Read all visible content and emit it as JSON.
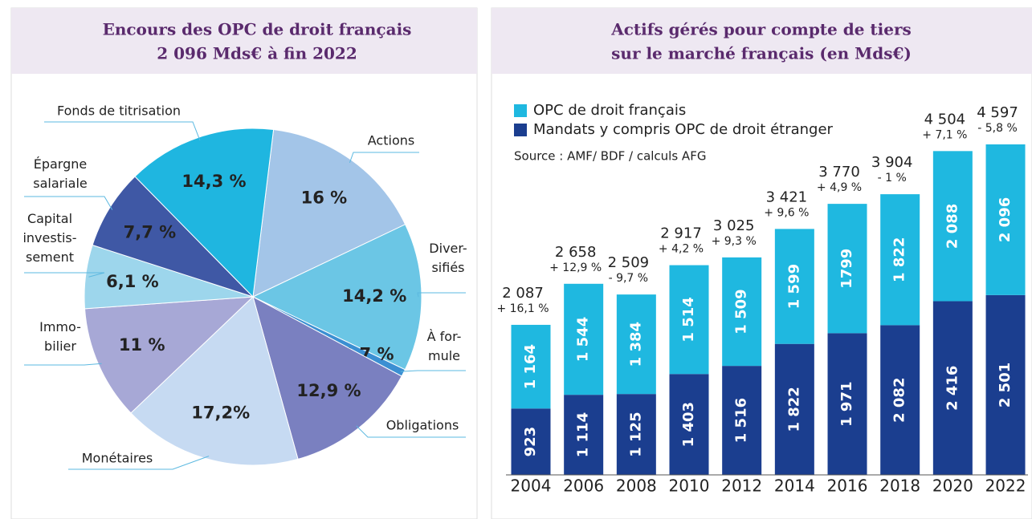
{
  "charts": [
    {
      "type": "pie",
      "title": "Encours des OPC de droit français",
      "subtitle": "2 096 Mds€ à fin 2022",
      "categories": [
        "Actions",
        "Diver-\nsifiés",
        "À for-\nmule",
        "Obligations",
        "Monétaires",
        "Immo-\nbilier",
        "Capital\ninvestis-\nsement",
        "Épargne\nsalariale",
        "Fonds de titrisation"
      ],
      "values": [
        16,
        14.2,
        0.7,
        12.9,
        17.2,
        11,
        6.1,
        7.7,
        14.3
      ],
      "value_labels": [
        "16 %",
        "14,2 %",
        "0,7 %",
        "12,9 %",
        "17,2%",
        "11 %",
        "6,1 %",
        "7,7 %",
        "14,3 %"
      ],
      "colors": [
        "#a3c5e8",
        "#6bc6e5",
        "#3b8fd2",
        "#7a80c0",
        "#c6daf2",
        "#a7a8d6",
        "#9dd6ec",
        "#3f58a5",
        "#1fb6e0"
      ]
    },
    {
      "type": "bar",
      "stacked": true,
      "title": "Actifs gérés pour compte de tiers",
      "subtitle": "sur le marché français (en Mds€)",
      "source": "Source : AMF/ BDF / calculs AFG",
      "categories": [
        "2004",
        "2006",
        "2008",
        "2010",
        "2012",
        "2014",
        "2016",
        "2018",
        "2020",
        "2022"
      ],
      "series": [
        {
          "name": "Mandats y compris OPC de droit étranger",
          "color": "#1b3e8f",
          "values": [
            923,
            1114,
            1125,
            1403,
            1516,
            1822,
            1971,
            2082,
            2416,
            2501
          ],
          "value_labels": [
            "923",
            "1 114",
            "1 125",
            "1 403",
            "1 516",
            "1 822",
            "1 971",
            "2 082",
            "2 416",
            "2 501"
          ]
        },
        {
          "name": "OPC de droit français",
          "color": "#1fb8e0",
          "values": [
            1164,
            1544,
            1384,
            1514,
            1509,
            1599,
            1799,
            1822,
            2088,
            2096
          ],
          "value_labels": [
            "1 164",
            "1 544",
            "1 384",
            "1 514",
            "1 509",
            "1 599",
            "1799",
            "1 822",
            "2 088",
            "2 096"
          ]
        }
      ],
      "totals": [
        "2 087",
        "2 658",
        "2 509",
        "2 917",
        "3 025",
        "3 421",
        "3 770",
        "3 904",
        "4 504",
        "4 597"
      ],
      "growth": [
        "+ 16,1 %",
        "+ 12,9 %",
        "- 9,7 %",
        "+ 4,2 %",
        "+ 9,3 %",
        "+ 9,6 %",
        "+ 4,9 %",
        "- 1 %",
        "+ 7,1 %",
        "- 5,8 %"
      ]
    }
  ]
}
